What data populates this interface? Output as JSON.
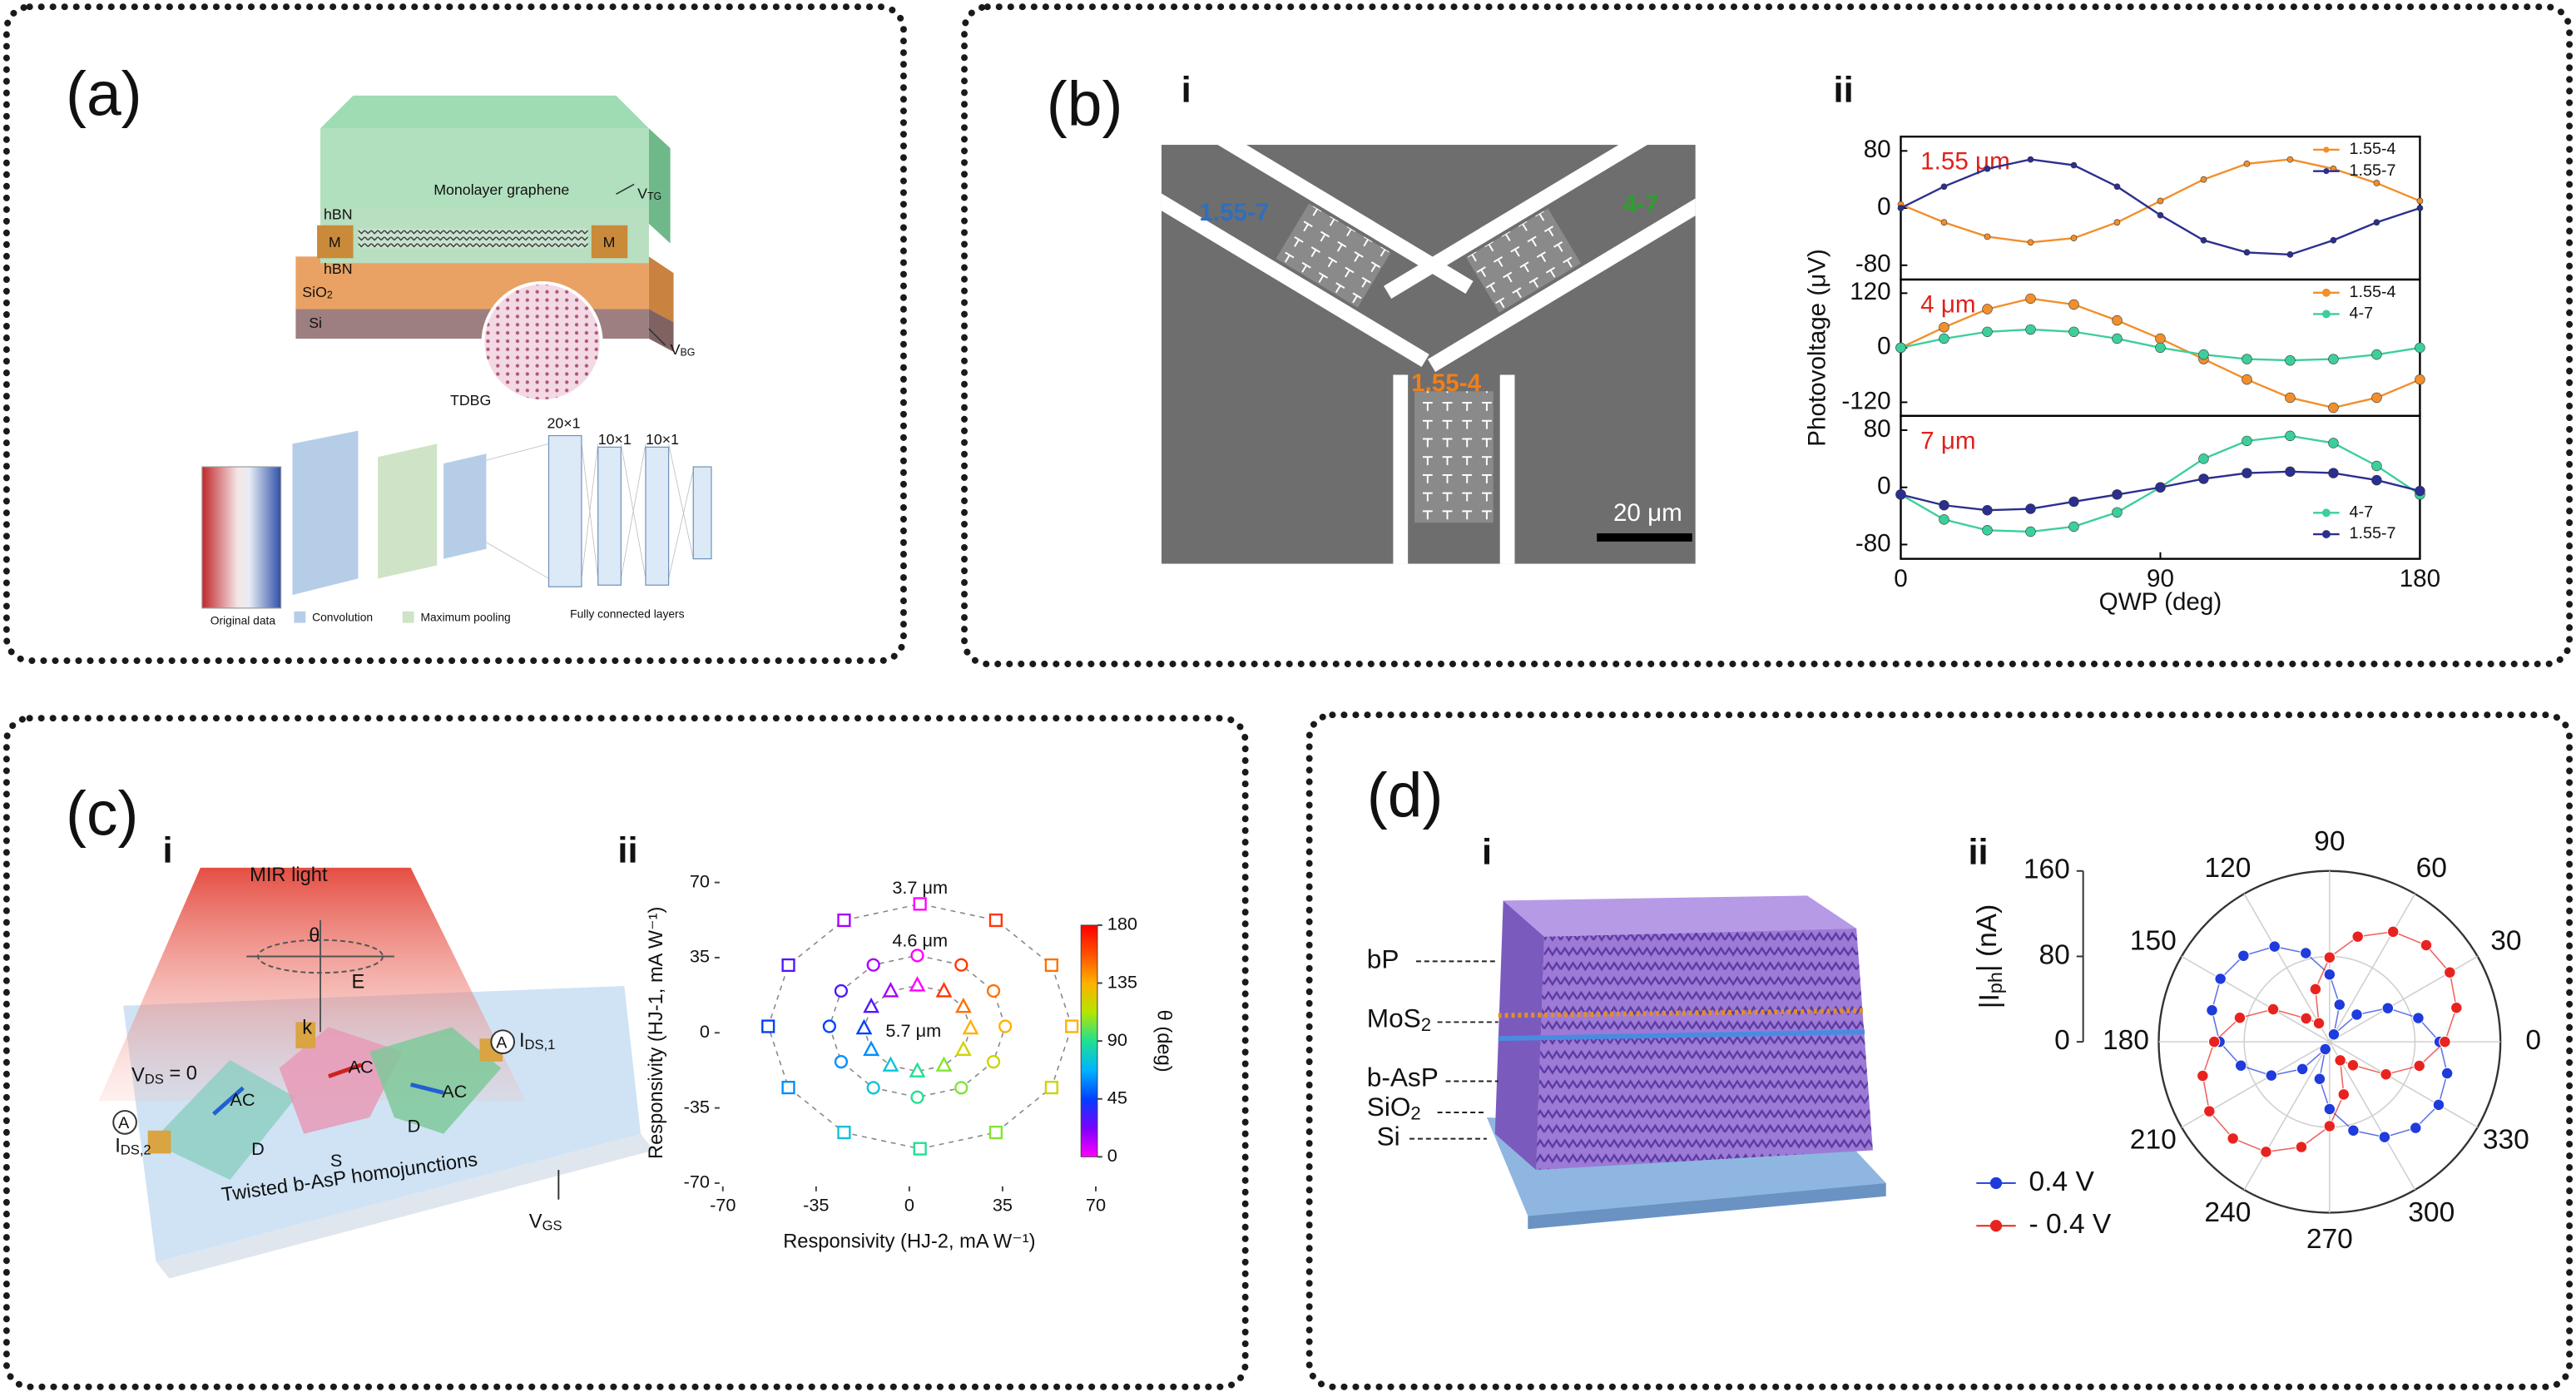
{
  "panels": {
    "a": {
      "label": "(a)",
      "device": {
        "graphene": "Monolayer graphene",
        "v_tg": {
          "text": "V",
          "sub": "TG"
        },
        "hbn_top": "hBN",
        "metal_left": "M",
        "metal_right": "M",
        "hbn_bottom": "hBN",
        "sio2": {
          "text": "SiO",
          "sub": "2"
        },
        "si": "Si",
        "tdbg": "TDBG",
        "v_bg": {
          "text": "V",
          "sub": "BG"
        }
      },
      "network": {
        "fc_sizes": [
          "20×1",
          "10×1",
          "10×1"
        ],
        "original": "Original data",
        "convolution": "Convolution",
        "pooling": "Maximum pooling",
        "fully_connected": "Fully connected layers"
      }
    },
    "b": {
      "label": "(b)",
      "i": {
        "label": "i",
        "device_left": "1.55-7",
        "device_right": "4-7",
        "device_bottom": "1.55-4",
        "scale_bar": "20 μm"
      },
      "ii": {
        "label": "ii"
      }
    },
    "c": {
      "label": "(c)",
      "i": {
        "label": "i",
        "light": "MIR light",
        "theta": "θ",
        "e_field": "E",
        "k_vector": "k",
        "v_ds": {
          "text": "V",
          "sub": "DS",
          "after": " = 0"
        },
        "ammeter_right": "A",
        "i_ds1": {
          "text": "I",
          "sub": "DS,1"
        },
        "ammeter_left": "A",
        "i_ds2": {
          "text": "I",
          "sub": "DS,2"
        },
        "ac_labels": [
          "AC",
          "AC",
          "AC"
        ],
        "terminals": [
          "D",
          "S",
          "D"
        ],
        "caption": "Twisted b-AsP homojunctions",
        "v_gs": {
          "text": "V",
          "sub": "GS"
        }
      },
      "ii": {
        "label": "ii"
      }
    },
    "d": {
      "label": "(d)",
      "i": {
        "label": "i",
        "layers": [
          {
            "text": "bP"
          },
          {
            "text": "MoS",
            "sub": "2"
          },
          {
            "text": "b-AsP"
          },
          {
            "text": "SiO",
            "sub": "2"
          },
          {
            "text": "Si"
          }
        ]
      },
      "ii": {
        "label": "ii"
      }
    }
  },
  "chart_data": [
    {
      "type": "line",
      "annotation": "1.55 μm",
      "annotation_color": "#e0201b",
      "x": [
        0,
        15,
        30,
        45,
        60,
        75,
        90,
        105,
        120,
        135,
        150,
        165,
        180
      ],
      "xlim": [
        0,
        180
      ],
      "ylim": [
        -100,
        100
      ],
      "yticks": [
        -80,
        0,
        80
      ],
      "legend": "upper right",
      "series": [
        {
          "name": "1.55-4",
          "color": "#f28e2b",
          "values": [
            5,
            -20,
            -40,
            -48,
            -42,
            -20,
            10,
            40,
            62,
            68,
            55,
            35,
            10
          ]
        },
        {
          "name": "1.55-7",
          "color": "#2b2f8f",
          "values": [
            0,
            30,
            55,
            68,
            60,
            30,
            -10,
            -45,
            -62,
            -65,
            -45,
            -20,
            0
          ]
        }
      ]
    },
    {
      "type": "line",
      "annotation": "4 μm",
      "annotation_color": "#e0201b",
      "ylabel": "Photovoltage (μV)",
      "x": [
        0,
        15,
        30,
        45,
        60,
        75,
        90,
        105,
        120,
        135,
        150,
        165,
        180
      ],
      "xlim": [
        0,
        180
      ],
      "ylim": [
        -150,
        150
      ],
      "yticks": [
        -120,
        0,
        120
      ],
      "legend": "upper right",
      "series": [
        {
          "name": "1.55-4",
          "color": "#f28e2b",
          "values": [
            0,
            45,
            85,
            108,
            95,
            60,
            20,
            -25,
            -70,
            -110,
            -132,
            -110,
            -70
          ]
        },
        {
          "name": "4-7",
          "color": "#3ccf9a",
          "values": [
            0,
            20,
            35,
            40,
            35,
            20,
            0,
            -15,
            -25,
            -28,
            -25,
            -15,
            0
          ]
        }
      ]
    },
    {
      "type": "line",
      "annotation": "7 μm",
      "annotation_color": "#e0201b",
      "xlabel": "QWP (deg)",
      "x": [
        0,
        15,
        30,
        45,
        60,
        75,
        90,
        105,
        120,
        135,
        150,
        165,
        180
      ],
      "xlim": [
        0,
        180
      ],
      "xticks": [
        0,
        90,
        180
      ],
      "ylim": [
        -100,
        100
      ],
      "yticks": [
        -80,
        0,
        80
      ],
      "legend": "lower right",
      "series": [
        {
          "name": "4-7",
          "color": "#3ccf9a",
          "values": [
            -10,
            -45,
            -60,
            -62,
            -55,
            -35,
            0,
            40,
            65,
            72,
            62,
            30,
            -10
          ]
        },
        {
          "name": "1.55-7",
          "color": "#2b2f8f",
          "values": [
            -10,
            -25,
            -32,
            -30,
            -20,
            -10,
            0,
            12,
            20,
            22,
            20,
            10,
            -5
          ]
        }
      ]
    },
    {
      "type": "scatter",
      "xlabel": "Responsivity (HJ-2, mA W⁻¹)",
      "ylabel": "Responsivity (HJ-1, mA W⁻¹)",
      "xlim": [
        -70,
        70
      ],
      "xticks": [
        -70,
        -35,
        0,
        35,
        70
      ],
      "ylim": [
        -70,
        70
      ],
      "yticks": [
        -70,
        -35,
        0,
        35,
        70
      ],
      "colorbar": {
        "label": "θ (deg)",
        "lim": [
          0,
          180
        ],
        "ticks": [
          0,
          45,
          90,
          135,
          180
        ],
        "colors": [
          "#ff00ff",
          "#7a00ff",
          "#0040ff",
          "#00b4ff",
          "#20e090",
          "#b4e600",
          "#ffb000",
          "#ff5000",
          "#ff0000"
        ]
      },
      "series": [
        {
          "name": "3.7 μm",
          "marker": "square",
          "x": [
            61,
            53.4,
            32.5,
            4,
            -24.5,
            -45.4,
            -53,
            -45.4,
            -24.5,
            4,
            32.5,
            53.4
          ],
          "values": [
            3,
            31.5,
            52.4,
            60,
            52.4,
            31.5,
            3,
            -25.5,
            -46.4,
            -54,
            -46.4,
            -25.5
          ],
          "theta": [
            135,
            150,
            165,
            0,
            15,
            30,
            45,
            60,
            75,
            90,
            105,
            120
          ]
        },
        {
          "name": "4.6 μm",
          "marker": "circle",
          "x": [
            36,
            31.6,
            19.5,
            3,
            -13.5,
            -25.6,
            -30,
            -25.6,
            -13.5,
            3,
            19.5,
            31.6
          ],
          "values": [
            3,
            19.5,
            31.6,
            36,
            31.6,
            19.5,
            3,
            -13.5,
            -25.6,
            -30,
            -25.6,
            -13.5
          ],
          "theta": [
            135,
            150,
            165,
            0,
            15,
            30,
            45,
            60,
            75,
            90,
            105,
            120
          ]
        },
        {
          "name": "5.7 μm",
          "marker": "triangle",
          "x": [
            23,
            20.3,
            13,
            3,
            -7,
            -14.3,
            -17,
            -14.3,
            -7,
            3,
            13,
            20.3
          ],
          "values": [
            2,
            12,
            19.3,
            22,
            19.3,
            12,
            2,
            -8,
            -15.3,
            -18,
            -15.3,
            -8
          ],
          "theta": [
            135,
            150,
            165,
            0,
            15,
            30,
            45,
            60,
            75,
            90,
            105,
            120
          ]
        }
      ]
    },
    {
      "type": "polar",
      "rlabel": {
        "text": "|I",
        "sub": "ph",
        "after": "| (nA)"
      },
      "rlim": [
        0,
        160
      ],
      "rticks": [
        0,
        80,
        160
      ],
      "thetaticks": [
        0,
        30,
        60,
        90,
        120,
        150,
        180,
        210,
        240,
        270,
        300,
        330
      ],
      "theta": [
        0,
        15,
        30,
        45,
        60,
        75,
        90,
        105,
        120,
        135,
        150,
        165,
        180,
        195,
        210,
        225,
        240,
        255,
        270,
        285,
        300,
        315,
        330,
        345
      ],
      "legend": "lower left",
      "grid": true,
      "series": [
        {
          "name": "0.4 V",
          "color": "#1f3bdc",
          "values": [
            103,
            86,
            63,
            36,
            8,
            36,
            63,
            86,
            103,
            114,
            118,
            114,
            103,
            86,
            63,
            36,
            8,
            36,
            63,
            86,
            103,
            114,
            118,
            114
          ]
        },
        {
          "name": "- 0.4 V",
          "color": "#e8231f",
          "values": [
            108,
            123,
            130,
            128,
            119,
            102,
            79,
            51,
            20,
            31,
            61,
            87,
            108,
            123,
            130,
            128,
            119,
            102,
            79,
            51,
            20,
            31,
            61,
            87
          ]
        }
      ]
    }
  ]
}
